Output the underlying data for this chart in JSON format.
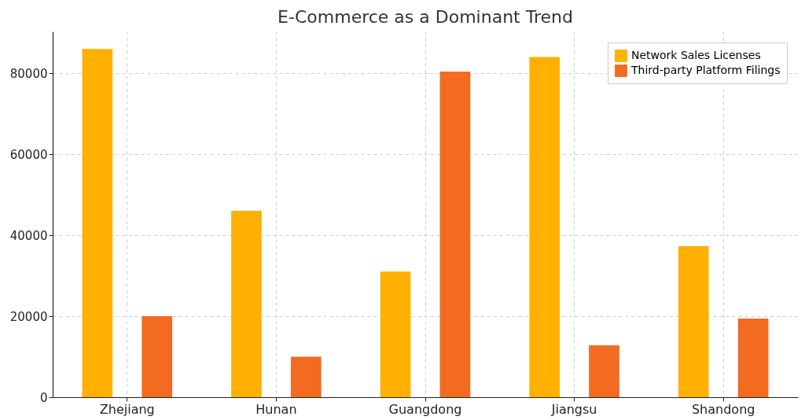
{
  "chart_data": {
    "type": "bar",
    "title": "E-Commerce as a Dominant Trend",
    "categories": [
      "Zhejiang",
      "Hunan",
      "Guangdong",
      "Jiangsu",
      "Shandong"
    ],
    "series": [
      {
        "name": "Network Sales Licenses",
        "color": "#ffb000",
        "values": [
          86000,
          46000,
          31000,
          84000,
          37300
        ]
      },
      {
        "name": "Third-party Platform Filings",
        "color": "#f26b21",
        "values": [
          20000,
          10000,
          80400,
          12800,
          19400
        ]
      }
    ],
    "ylim": [
      0,
      90300
    ],
    "yticks": [
      0,
      20000,
      40000,
      60000,
      80000
    ],
    "grid": true,
    "legend": "top right"
  }
}
